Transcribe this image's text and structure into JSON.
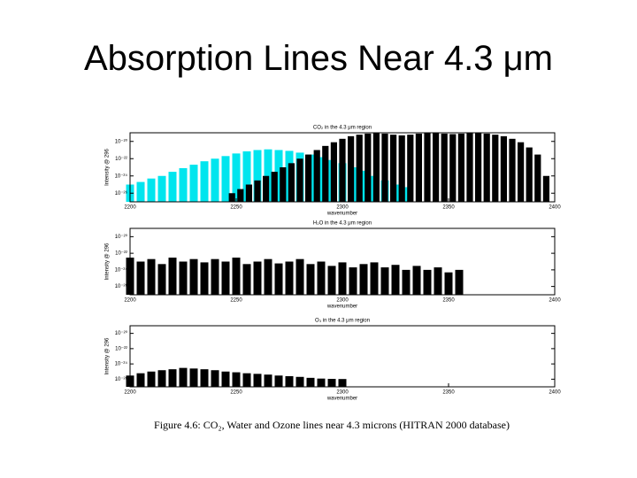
{
  "title": "Absorption Lines Near 4.3 μm",
  "caption": "Figure 4.6: CO₂, Water and Ozone lines near 4.3 microns (HITRAN 2000 database)",
  "chart_data": [
    {
      "type": "bar",
      "title": "CO₂ in the 4.3 μm region",
      "xlabel": "wavenumber",
      "ylabel": "Intensity @ 296",
      "log_y": true,
      "xlim": [
        2200,
        2400
      ],
      "xticks": [
        2200,
        2250,
        2300,
        2350,
        2400
      ],
      "ylim": [
        1e-27,
        1e-19
      ],
      "yticks": [
        {
          "value": 1e-26,
          "label": "10⁻²⁶"
        },
        {
          "value": 1e-24,
          "label": "10⁻²⁴"
        },
        {
          "value": 1e-22,
          "label": "10⁻²²"
        },
        {
          "value": 1e-20,
          "label": "10⁻²⁰"
        }
      ],
      "series": [
        {
          "color": "#00e5ee",
          "x": [
            2200,
            2205,
            2210,
            2215,
            2220,
            2225,
            2230,
            2235,
            2240,
            2245,
            2250,
            2255,
            2260,
            2265,
            2270,
            2275,
            2280,
            2285,
            2290,
            2295,
            2300,
            2305,
            2310,
            2315,
            2320,
            2325,
            2330
          ],
          "values": [
            1e-25,
            2e-25,
            5e-25,
            1e-24,
            3e-24,
            8e-24,
            2e-23,
            5e-23,
            1e-22,
            2e-22,
            4e-22,
            7e-22,
            1e-21,
            1.2e-21,
            1e-21,
            8e-22,
            5e-22,
            3e-22,
            1.5e-22,
            7e-23,
            3e-23,
            1e-23,
            4e-24,
            1e-24,
            3e-25,
            1e-25,
            5e-26
          ]
        },
        {
          "color": "#000000",
          "x": [
            2248,
            2252,
            2256,
            2260,
            2264,
            2268,
            2272,
            2276,
            2280,
            2284,
            2288,
            2292,
            2296,
            2300,
            2304,
            2308,
            2312,
            2316,
            2320,
            2324,
            2328,
            2332,
            2336,
            2340,
            2344,
            2348,
            2352,
            2356,
            2360,
            2364,
            2368,
            2372,
            2376,
            2380,
            2384,
            2388,
            2392,
            2396
          ],
          "values": [
            1e-26,
            3e-26,
            1e-25,
            3e-25,
            1e-24,
            3e-24,
            1e-23,
            3e-23,
            1e-22,
            3e-22,
            1e-21,
            3e-21,
            8e-21,
            2e-20,
            4e-20,
            6e-20,
            8e-20,
            9e-20,
            8e-20,
            6e-20,
            5e-20,
            6e-20,
            8e-20,
            9e-20,
            9e-20,
            8e-20,
            7e-20,
            8e-20,
            9e-20,
            9e-20,
            8e-20,
            6e-20,
            4e-20,
            2e-20,
            8e-21,
            2e-21,
            3e-22,
            1e-24
          ]
        }
      ]
    },
    {
      "type": "bar",
      "title": "H₂O in the 4.3 μm region",
      "xlabel": "wavenumber",
      "ylabel": "Intensity @ 296",
      "log_y": true,
      "xlim": [
        2200,
        2400
      ],
      "xticks": [
        2200,
        2250,
        2300,
        2350,
        2400
      ],
      "ylim": [
        1e-27,
        1e-19
      ],
      "yticks": [
        {
          "value": 1e-26,
          "label": "10⁻²⁶"
        },
        {
          "value": 1e-24,
          "label": "10⁻²⁴"
        },
        {
          "value": 1e-22,
          "label": "10⁻²²"
        },
        {
          "value": 1e-20,
          "label": "10⁻²⁰"
        }
      ],
      "series": [
        {
          "color": "#000000",
          "x": [
            2200,
            2205,
            2210,
            2215,
            2220,
            2225,
            2230,
            2235,
            2240,
            2245,
            2250,
            2255,
            2260,
            2265,
            2270,
            2275,
            2280,
            2285,
            2290,
            2295,
            2300,
            2305,
            2310,
            2315,
            2320,
            2325,
            2330,
            2335,
            2340,
            2345,
            2350,
            2355
          ],
          "values": [
            3e-23,
            1e-23,
            2e-23,
            5e-24,
            3e-23,
            1e-23,
            2e-23,
            8e-24,
            2e-23,
            1e-23,
            3e-23,
            5e-24,
            1e-23,
            2e-23,
            6e-24,
            1e-23,
            2e-23,
            5e-24,
            1e-23,
            3e-24,
            8e-24,
            2e-24,
            5e-24,
            8e-24,
            2e-24,
            4e-24,
            1e-24,
            3e-24,
            1e-24,
            2e-24,
            5e-25,
            1e-24
          ]
        }
      ]
    },
    {
      "type": "bar",
      "title": "O₃ in the 4.3 μm region",
      "xlabel": "wavenumber",
      "ylabel": "Intensity @ 296",
      "log_y": true,
      "xlim": [
        2200,
        2400
      ],
      "xticks": [
        2200,
        2250,
        2300,
        2350,
        2400
      ],
      "ylim": [
        1e-27,
        1e-19
      ],
      "yticks": [
        {
          "value": 1e-26,
          "label": "10⁻²⁶"
        },
        {
          "value": 1e-24,
          "label": "10⁻²⁴"
        },
        {
          "value": 1e-22,
          "label": "10⁻²²"
        },
        {
          "value": 1e-20,
          "label": "10⁻²⁰"
        }
      ],
      "series": [
        {
          "color": "#000000",
          "x": [
            2200,
            2205,
            2210,
            2215,
            2220,
            2225,
            2230,
            2235,
            2240,
            2245,
            2250,
            2255,
            2260,
            2265,
            2270,
            2275,
            2280,
            2285,
            2290,
            2295,
            2300
          ],
          "values": [
            3e-26,
            6e-26,
            1e-25,
            1.5e-25,
            2e-25,
            3e-25,
            2.5e-25,
            2e-25,
            1.5e-25,
            1e-25,
            8e-26,
            6e-26,
            5e-26,
            4e-26,
            3e-26,
            2.5e-26,
            2e-26,
            1.5e-26,
            1.2e-26,
            1.1e-26,
            1.05e-26
          ]
        }
      ]
    }
  ]
}
